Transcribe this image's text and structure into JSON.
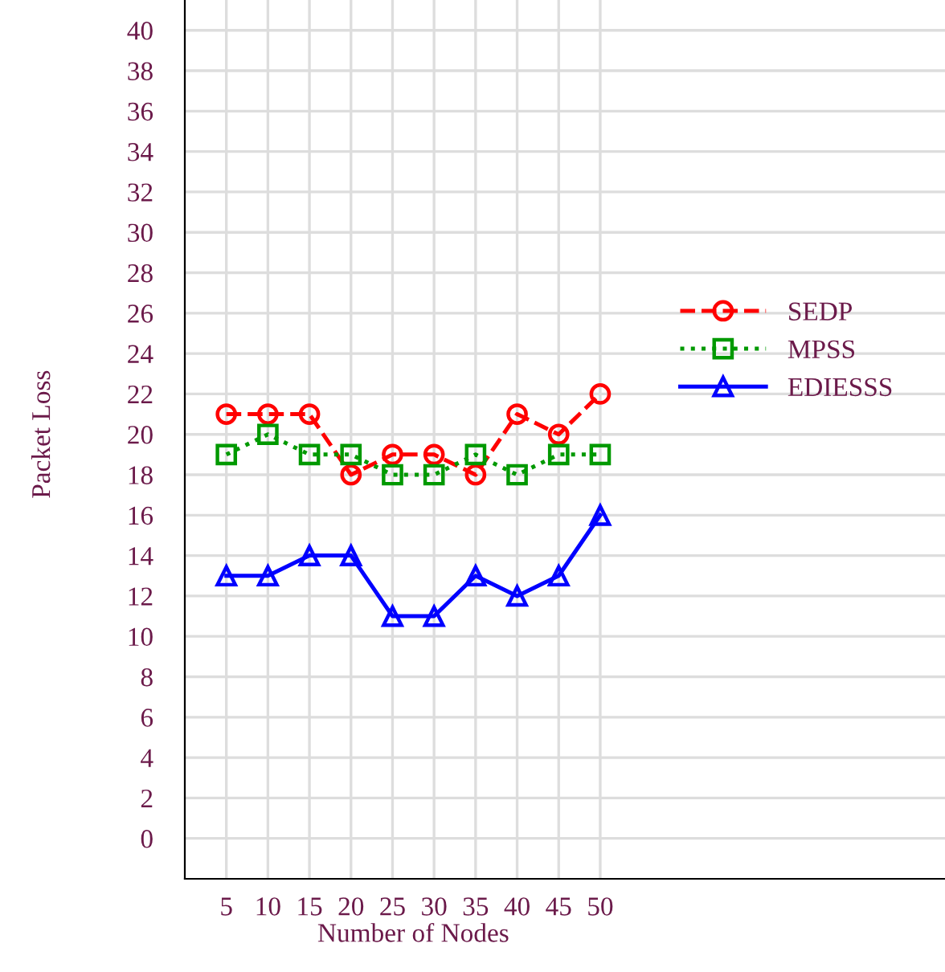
{
  "chart_data": {
    "type": "line",
    "xlabel": "Number of Nodes",
    "ylabel": "Packet Loss",
    "categories": [
      "5",
      "10",
      "15",
      "20",
      "25",
      "30",
      "35",
      "40",
      "45",
      "50"
    ],
    "series": [
      {
        "name": "SEDP",
        "color": "#ff0000",
        "values": [
          21,
          21,
          21,
          18,
          19,
          19,
          18,
          21,
          20,
          22
        ],
        "marker": "circle",
        "line_style": "dashed"
      },
      {
        "name": "MPSS",
        "color": "#009900",
        "values": [
          19,
          20,
          19,
          19,
          18,
          18,
          19,
          18,
          19,
          19
        ],
        "marker": "square",
        "line_style": "dotted"
      },
      {
        "name": "EDIESSS",
        "color": "#0000ff",
        "values": [
          13,
          13,
          14,
          14,
          11,
          11,
          13,
          12,
          13,
          16
        ],
        "marker": "triangle",
        "line_style": "solid"
      }
    ],
    "ylim": [
      -2,
      41.5
    ],
    "yticks": [
      0,
      2,
      4,
      6,
      8,
      10,
      12,
      14,
      16,
      18,
      20,
      22,
      24,
      26,
      28,
      30,
      32,
      34,
      36,
      38,
      40
    ],
    "grid": true,
    "legend": "right"
  }
}
